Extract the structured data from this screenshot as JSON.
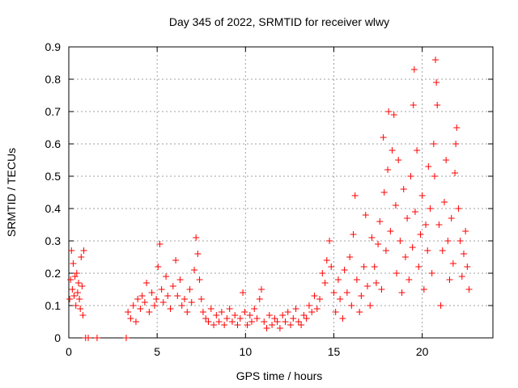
{
  "chart_data": {
    "type": "scatter",
    "title": "Day 345 of 2022, SRMTID for receiver wlwy",
    "xlabel": "GPS time / hours",
    "ylabel": "SRMTID / TECUs",
    "xlim": [
      0,
      24
    ],
    "ylim": [
      0,
      0.9
    ],
    "grid": true,
    "marker": "+",
    "x_ticks": [
      0,
      5,
      10,
      15,
      20
    ],
    "x_tick_labels": [
      "0",
      "5",
      "10",
      "15",
      "20"
    ],
    "y_ticks": [
      0,
      0.1,
      0.2,
      0.3,
      0.4,
      0.5,
      0.6,
      0.7,
      0.8,
      0.9
    ],
    "y_tick_labels": [
      "0",
      "0.1",
      "0.2",
      "0.3",
      "0.4",
      "0.5",
      "0.6",
      "0.7",
      "0.8",
      "0.9"
    ],
    "series": [
      {
        "name": "SRMTID",
        "color": "#ff0000",
        "points": [
          [
            0.05,
            0.12
          ],
          [
            0.1,
            0.18
          ],
          [
            0.15,
            0.27
          ],
          [
            0.2,
            0.15
          ],
          [
            0.25,
            0.23
          ],
          [
            0.3,
            0.13
          ],
          [
            0.35,
            0.19
          ],
          [
            0.4,
            0.1
          ],
          [
            0.45,
            0.2
          ],
          [
            0.5,
            0.14
          ],
          [
            0.55,
            0.17
          ],
          [
            0.6,
            0.12
          ],
          [
            0.65,
            0.09
          ],
          [
            0.7,
            0.25
          ],
          [
            0.75,
            0.16
          ],
          [
            0.8,
            0.07
          ],
          [
            0.85,
            0.27
          ],
          [
            0.95,
            0.0
          ],
          [
            1.1,
            0.0
          ],
          [
            1.6,
            0.0
          ],
          [
            3.25,
            0.0
          ],
          [
            3.35,
            0.08
          ],
          [
            3.5,
            0.06
          ],
          [
            3.65,
            0.1
          ],
          [
            3.8,
            0.05
          ],
          [
            3.9,
            0.12
          ],
          [
            4.05,
            0.09
          ],
          [
            4.15,
            0.13
          ],
          [
            4.3,
            0.11
          ],
          [
            4.4,
            0.17
          ],
          [
            4.55,
            0.08
          ],
          [
            4.7,
            0.14
          ],
          [
            4.85,
            0.1
          ],
          [
            4.95,
            0.12
          ],
          [
            5.05,
            0.22
          ],
          [
            5.15,
            0.29
          ],
          [
            5.25,
            0.15
          ],
          [
            5.35,
            0.11
          ],
          [
            5.5,
            0.19
          ],
          [
            5.6,
            0.13
          ],
          [
            5.75,
            0.09
          ],
          [
            5.9,
            0.16
          ],
          [
            6.05,
            0.24
          ],
          [
            6.15,
            0.13
          ],
          [
            6.3,
            0.18
          ],
          [
            6.4,
            0.1
          ],
          [
            6.55,
            0.12
          ],
          [
            6.7,
            0.08
          ],
          [
            6.85,
            0.15
          ],
          [
            6.95,
            0.11
          ],
          [
            7.1,
            0.21
          ],
          [
            7.2,
            0.31
          ],
          [
            7.3,
            0.26
          ],
          [
            7.4,
            0.18
          ],
          [
            7.5,
            0.12
          ],
          [
            7.6,
            0.08
          ],
          [
            7.75,
            0.06
          ],
          [
            7.9,
            0.05
          ],
          [
            8.05,
            0.09
          ],
          [
            8.2,
            0.04
          ],
          [
            8.35,
            0.07
          ],
          [
            8.5,
            0.05
          ],
          [
            8.65,
            0.08
          ],
          [
            8.8,
            0.04
          ],
          [
            8.95,
            0.06
          ],
          [
            9.1,
            0.09
          ],
          [
            9.25,
            0.05
          ],
          [
            9.4,
            0.07
          ],
          [
            9.55,
            0.04
          ],
          [
            9.7,
            0.06
          ],
          [
            9.85,
            0.14
          ],
          [
            9.95,
            0.08
          ],
          [
            10.1,
            0.04
          ],
          [
            10.25,
            0.07
          ],
          [
            10.35,
            0.05
          ],
          [
            10.5,
            0.09
          ],
          [
            10.65,
            0.06
          ],
          [
            10.8,
            0.12
          ],
          [
            10.9,
            0.15
          ],
          [
            11.05,
            0.05
          ],
          [
            11.2,
            0.03
          ],
          [
            11.35,
            0.07
          ],
          [
            11.5,
            0.04
          ],
          [
            11.65,
            0.06
          ],
          [
            11.8,
            0.05
          ],
          [
            11.95,
            0.03
          ],
          [
            12.1,
            0.07
          ],
          [
            12.25,
            0.05
          ],
          [
            12.4,
            0.08
          ],
          [
            12.55,
            0.04
          ],
          [
            12.7,
            0.06
          ],
          [
            12.85,
            0.09
          ],
          [
            13.0,
            0.05
          ],
          [
            13.15,
            0.04
          ],
          [
            13.3,
            0.07
          ],
          [
            13.45,
            0.06
          ],
          [
            13.6,
            0.1
          ],
          [
            13.75,
            0.08
          ],
          [
            13.9,
            0.13
          ],
          [
            14.05,
            0.09
          ],
          [
            14.2,
            0.12
          ],
          [
            14.35,
            0.2
          ],
          [
            14.5,
            0.17
          ],
          [
            14.6,
            0.24
          ],
          [
            14.75,
            0.3
          ],
          [
            14.85,
            0.22
          ],
          [
            15.0,
            0.14
          ],
          [
            15.1,
            0.08
          ],
          [
            15.25,
            0.18
          ],
          [
            15.35,
            0.12
          ],
          [
            15.5,
            0.06
          ],
          [
            15.6,
            0.21
          ],
          [
            15.75,
            0.14
          ],
          [
            15.9,
            0.25
          ],
          [
            16.0,
            0.1
          ],
          [
            16.1,
            0.32
          ],
          [
            16.2,
            0.44
          ],
          [
            16.3,
            0.18
          ],
          [
            16.45,
            0.08
          ],
          [
            16.55,
            0.13
          ],
          [
            16.7,
            0.22
          ],
          [
            16.8,
            0.38
          ],
          [
            16.9,
            0.16
          ],
          [
            17.05,
            0.1
          ],
          [
            17.15,
            0.31
          ],
          [
            17.3,
            0.22
          ],
          [
            17.4,
            0.17
          ],
          [
            17.5,
            0.29
          ],
          [
            17.6,
            0.36
          ],
          [
            17.7,
            0.15
          ],
          [
            17.8,
            0.62
          ],
          [
            17.85,
            0.45
          ],
          [
            17.95,
            0.27
          ],
          [
            18.05,
            0.52
          ],
          [
            18.1,
            0.7
          ],
          [
            18.2,
            0.33
          ],
          [
            18.3,
            0.58
          ],
          [
            18.4,
            0.69
          ],
          [
            18.5,
            0.41
          ],
          [
            18.55,
            0.2
          ],
          [
            18.65,
            0.55
          ],
          [
            18.75,
            0.3
          ],
          [
            18.85,
            0.14
          ],
          [
            18.95,
            0.46
          ],
          [
            19.05,
            0.25
          ],
          [
            19.15,
            0.37
          ],
          [
            19.25,
            0.18
          ],
          [
            19.35,
            0.5
          ],
          [
            19.45,
            0.28
          ],
          [
            19.5,
            0.72
          ],
          [
            19.55,
            0.83
          ],
          [
            19.6,
            0.39
          ],
          [
            19.7,
            0.58
          ],
          [
            19.8,
            0.22
          ],
          [
            19.9,
            0.32
          ],
          [
            20.0,
            0.44
          ],
          [
            20.1,
            0.15
          ],
          [
            20.2,
            0.35
          ],
          [
            20.3,
            0.27
          ],
          [
            20.35,
            0.53
          ],
          [
            20.45,
            0.4
          ],
          [
            20.55,
            0.2
          ],
          [
            20.65,
            0.6
          ],
          [
            20.7,
            0.5
          ],
          [
            20.75,
            0.86
          ],
          [
            20.8,
            0.79
          ],
          [
            20.85,
            0.72
          ],
          [
            20.95,
            0.35
          ],
          [
            21.05,
            0.1
          ],
          [
            21.15,
            0.27
          ],
          [
            21.25,
            0.42
          ],
          [
            21.35,
            0.55
          ],
          [
            21.45,
            0.3
          ],
          [
            21.55,
            0.18
          ],
          [
            21.65,
            0.37
          ],
          [
            21.75,
            0.23
          ],
          [
            21.85,
            0.51
          ],
          [
            21.9,
            0.6
          ],
          [
            21.95,
            0.65
          ],
          [
            22.05,
            0.4
          ],
          [
            22.15,
            0.3
          ],
          [
            22.25,
            0.19
          ],
          [
            22.35,
            0.26
          ],
          [
            22.45,
            0.33
          ],
          [
            22.55,
            0.22
          ],
          [
            22.65,
            0.15
          ]
        ]
      }
    ]
  }
}
